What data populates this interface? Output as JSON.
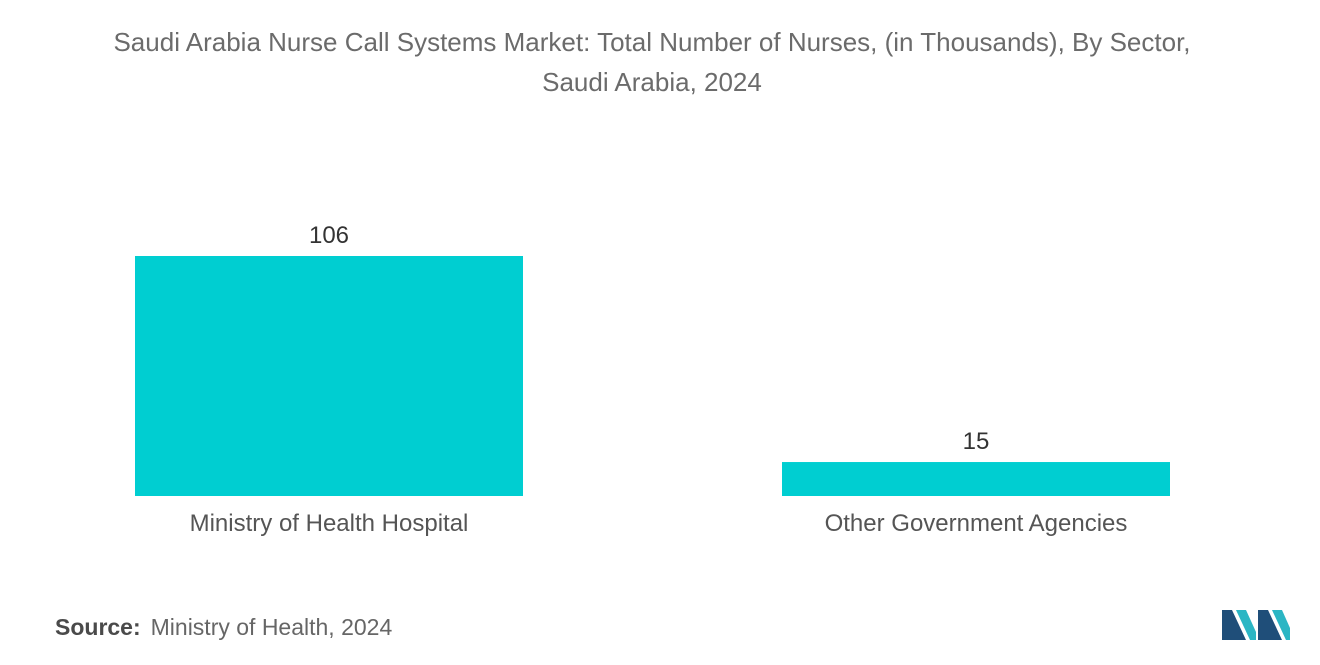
{
  "title_line1": "Saudi Arabia Nurse Call Systems Market: Total Number of Nurses, (in Thousands), By Sector,",
  "title_line2": "Saudi Arabia, 2024",
  "source_label": "Source:",
  "source_text": "Ministry of Health, 2024",
  "colors": {
    "bar": "#00CED1",
    "text": "#555555",
    "logo_dark": "#1f4e79",
    "logo_light": "#2bb6c4"
  },
  "logo_icon": "mordor-intelligence-logo",
  "chart_data": {
    "type": "bar",
    "title": "Saudi Arabia Nurse Call Systems Market: Total Number of Nurses, (in Thousands), By Sector, Saudi Arabia, 2024",
    "categories": [
      "Ministry of Health Hospital",
      "Other Government Agencies"
    ],
    "values": [
      106,
      15
    ],
    "data_labels": [
      "106",
      "15"
    ],
    "ylim": [
      0,
      106
    ],
    "grid": false,
    "legend": "none"
  }
}
